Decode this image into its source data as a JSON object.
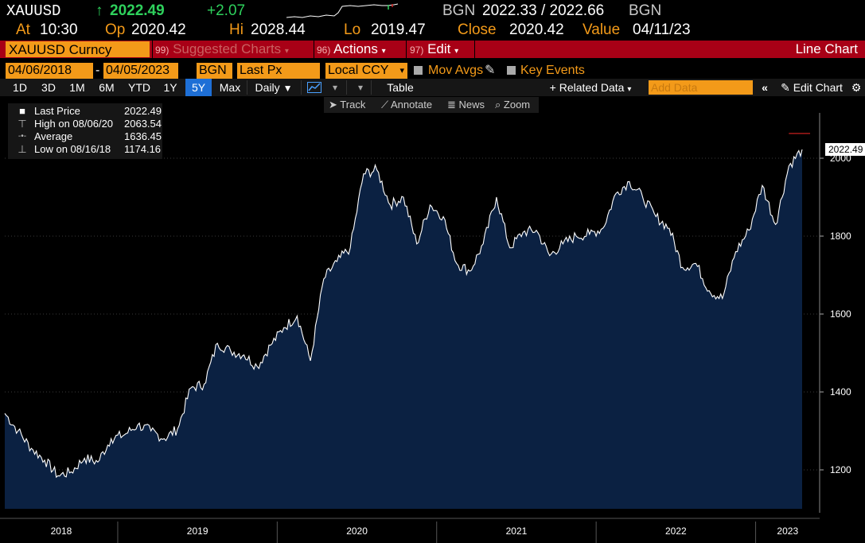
{
  "quote": {
    "ticker": "XAUUSD",
    "arrow": "↑",
    "last": "2022.49",
    "change": "+2.07",
    "source_left": "BGN",
    "bid_ask": "2022.33 / 2022.66",
    "source_right": "BGN"
  },
  "stats": {
    "at_label": "At",
    "at_value": "10:30",
    "open_label": "Op",
    "open_value": "2020.42",
    "high_label": "Hi",
    "high_value": "2028.44",
    "low_label": "Lo",
    "low_value": "2019.47",
    "close_label": "Close",
    "close_value": "2020.42",
    "value_label": "Value",
    "value_date": "04/11/23"
  },
  "command": {
    "security": "XAUUSD Curncy",
    "suggested_num": "99)",
    "suggested_label": "Suggested Charts",
    "actions_num": "96)",
    "actions_label": "Actions",
    "edit_num": "97)",
    "edit_label": "Edit",
    "chart_type": "Line Chart"
  },
  "range": {
    "start": "04/06/2018",
    "dash": "-",
    "end": "04/05/2023",
    "source": "BGN",
    "field": "Last Px",
    "currency": "Local CCY",
    "mov_avgs": "Mov Avgs",
    "key_events": "Key Events"
  },
  "timeframes": [
    "1D",
    "3D",
    "1M",
    "6M",
    "YTD",
    "1Y",
    "5Y",
    "Max"
  ],
  "active_timeframe": "5Y",
  "toolbar": {
    "frequency": "Daily",
    "table": "Table",
    "related": "Related Data",
    "add_data_placeholder": "Add Data",
    "edit_chart": "Edit Chart"
  },
  "tools": {
    "track": "Track",
    "annotate": "Annotate",
    "news": "News",
    "zoom": "Zoom"
  },
  "legend": [
    {
      "symbol": "■",
      "label": "Last Price",
      "value": "2022.49"
    },
    {
      "symbol": "⊤",
      "label": "High on 08/06/20",
      "value": "2063.54"
    },
    {
      "symbol": "-•-",
      "label": "Average",
      "value": "1636.45"
    },
    {
      "symbol": "⊥",
      "label": "Low on 08/16/18",
      "value": "1174.16"
    }
  ],
  "colors": {
    "area_fill": "#0b2142",
    "line": "#ffffff",
    "high_line": "#c8201e",
    "background": "#000000",
    "accent_orange": "#f39a19",
    "command_bar": "#a80016"
  },
  "chart_data": {
    "type": "area",
    "title": "",
    "xlabel": "",
    "ylabel": "",
    "ylim": [
      1100,
      2100
    ],
    "yticks": [
      1200,
      1400,
      1600,
      1800,
      2000
    ],
    "x_labels": [
      "2018",
      "2019",
      "2020",
      "2021",
      "2022",
      "2023"
    ],
    "last_value_label": "2022.49",
    "high_value": 2063.54,
    "series": [
      {
        "name": "Last Price",
        "x": [
          "2018-04",
          "2018-05",
          "2018-06",
          "2018-07",
          "2018-08",
          "2018-09",
          "2018-10",
          "2018-11",
          "2018-12",
          "2019-01",
          "2019-02",
          "2019-03",
          "2019-04",
          "2019-05",
          "2019-06",
          "2019-07",
          "2019-08",
          "2019-09",
          "2019-10",
          "2019-11",
          "2019-12",
          "2020-01",
          "2020-02",
          "2020-03",
          "2020-04",
          "2020-05",
          "2020-06",
          "2020-07",
          "2020-08",
          "2020-09",
          "2020-10",
          "2020-11",
          "2020-12",
          "2021-01",
          "2021-02",
          "2021-03",
          "2021-04",
          "2021-05",
          "2021-06",
          "2021-07",
          "2021-08",
          "2021-09",
          "2021-10",
          "2021-11",
          "2021-12",
          "2022-01",
          "2022-02",
          "2022-03",
          "2022-04",
          "2022-05",
          "2022-06",
          "2022-07",
          "2022-08",
          "2022-09",
          "2022-10",
          "2022-11",
          "2022-12",
          "2023-01",
          "2023-02",
          "2023-03",
          "2023-04"
        ],
        "values": [
          1345,
          1300,
          1255,
          1225,
          1185,
          1195,
          1230,
          1220,
          1280,
          1290,
          1315,
          1300,
          1280,
          1305,
          1410,
          1420,
          1525,
          1505,
          1495,
          1465,
          1520,
          1565,
          1595,
          1480,
          1690,
          1735,
          1770,
          1960,
          1970,
          1880,
          1900,
          1780,
          1880,
          1850,
          1730,
          1710,
          1780,
          1900,
          1770,
          1810,
          1815,
          1750,
          1780,
          1800,
          1805,
          1820,
          1910,
          1940,
          1900,
          1850,
          1820,
          1720,
          1730,
          1660,
          1640,
          1760,
          1815,
          1930,
          1830,
          1980,
          2022.49
        ]
      }
    ]
  }
}
